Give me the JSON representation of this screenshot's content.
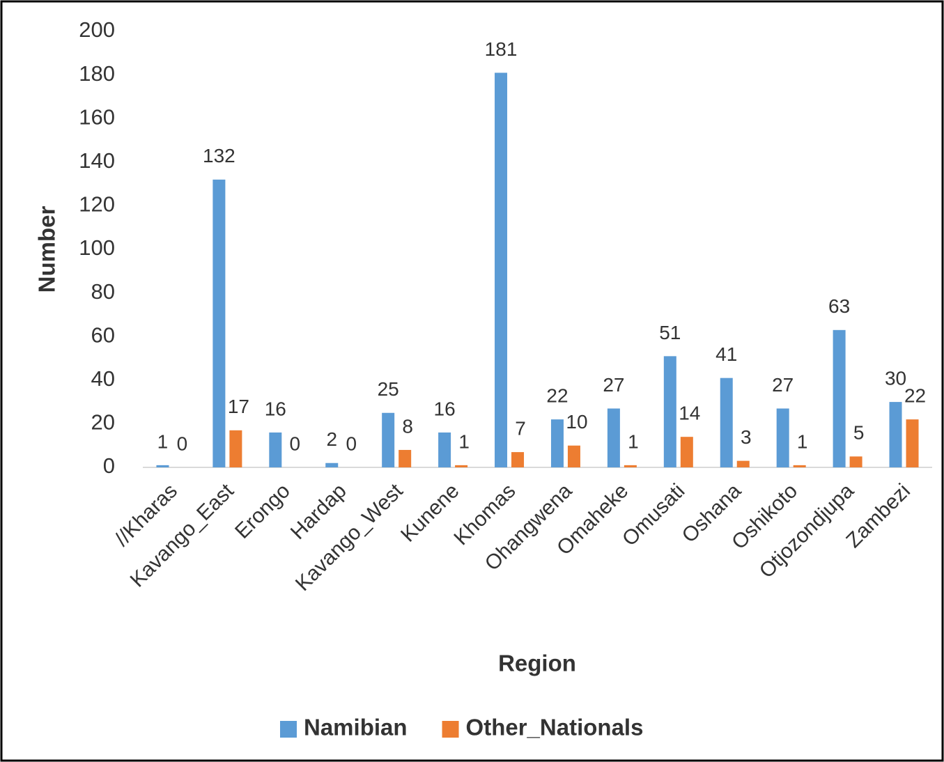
{
  "chart_data": {
    "type": "bar",
    "x_label": "Region",
    "y_label": "Number",
    "categories": [
      "//Kharas",
      "Kavango_East",
      "Erongo",
      "Hardap",
      "Kavango_West",
      "Kunene",
      "Khomas",
      "Ohangwena",
      "Omaheke",
      "Omusati",
      "Oshana",
      "Oshikoto",
      "Otjozondjupa",
      "Zambezi"
    ],
    "series": [
      {
        "name": "Namibian",
        "color": "#5b9bd5",
        "values": [
          1,
          132,
          16,
          2,
          25,
          16,
          181,
          22,
          27,
          51,
          41,
          27,
          63,
          30
        ]
      },
      {
        "name": "Other_Nationals",
        "color": "#ed7d31",
        "values": [
          0,
          17,
          0,
          0,
          8,
          1,
          7,
          10,
          1,
          14,
          3,
          1,
          5,
          22
        ]
      }
    ],
    "ylim": [
      0,
      200
    ],
    "yticks": [
      0,
      20,
      40,
      60,
      80,
      100,
      120,
      140,
      160,
      180,
      200
    ],
    "legend": "bottom"
  }
}
